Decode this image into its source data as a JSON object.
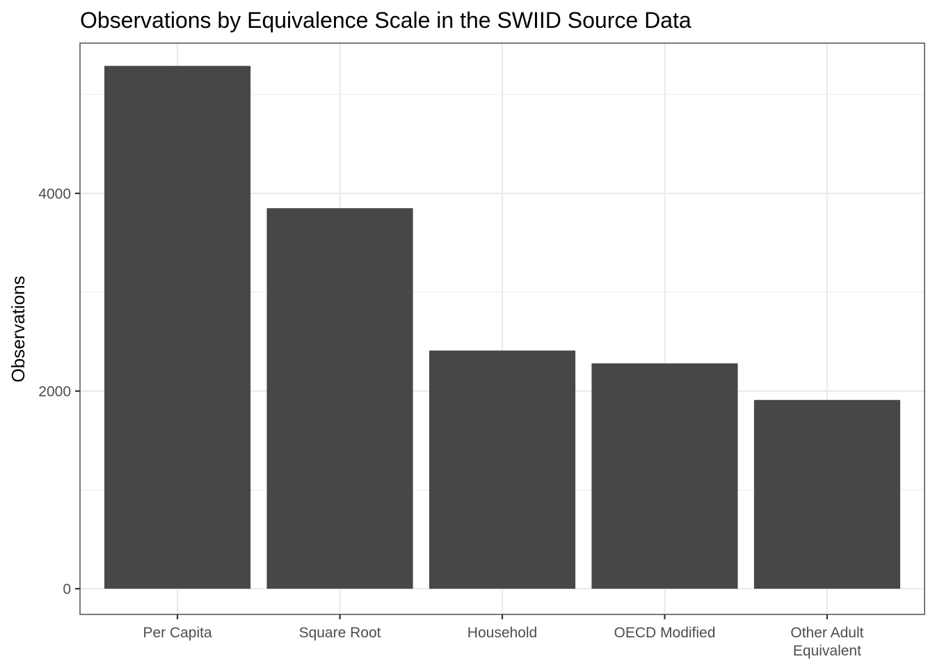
{
  "chart_data": {
    "type": "bar",
    "title": "Observations by Equivalence Scale in the SWIID Source Data",
    "xlabel": "",
    "ylabel": "Observations",
    "categories": [
      "Per Capita",
      "Square Root",
      "Household",
      "OECD Modified",
      "Other Adult Equivalent"
    ],
    "category_label_lines": [
      [
        "Per Capita"
      ],
      [
        "Square Root"
      ],
      [
        "Household"
      ],
      [
        "OECD Modified"
      ],
      [
        "Other Adult",
        "Equivalent"
      ]
    ],
    "values": [
      5290,
      3850,
      2410,
      2280,
      1910
    ],
    "ylim": [
      -260,
      5520
    ],
    "yticks": [
      0,
      2000,
      4000
    ],
    "yticks_minor": [
      1000,
      3000,
      5000
    ],
    "grid": true,
    "legend": "none",
    "colors": {
      "bar": "#474747",
      "grid": "#ebebeb",
      "panel_border": "#333333",
      "tick_mark": "#333333",
      "tick_label": "#4d4d4d",
      "background": "#ffffff"
    }
  }
}
